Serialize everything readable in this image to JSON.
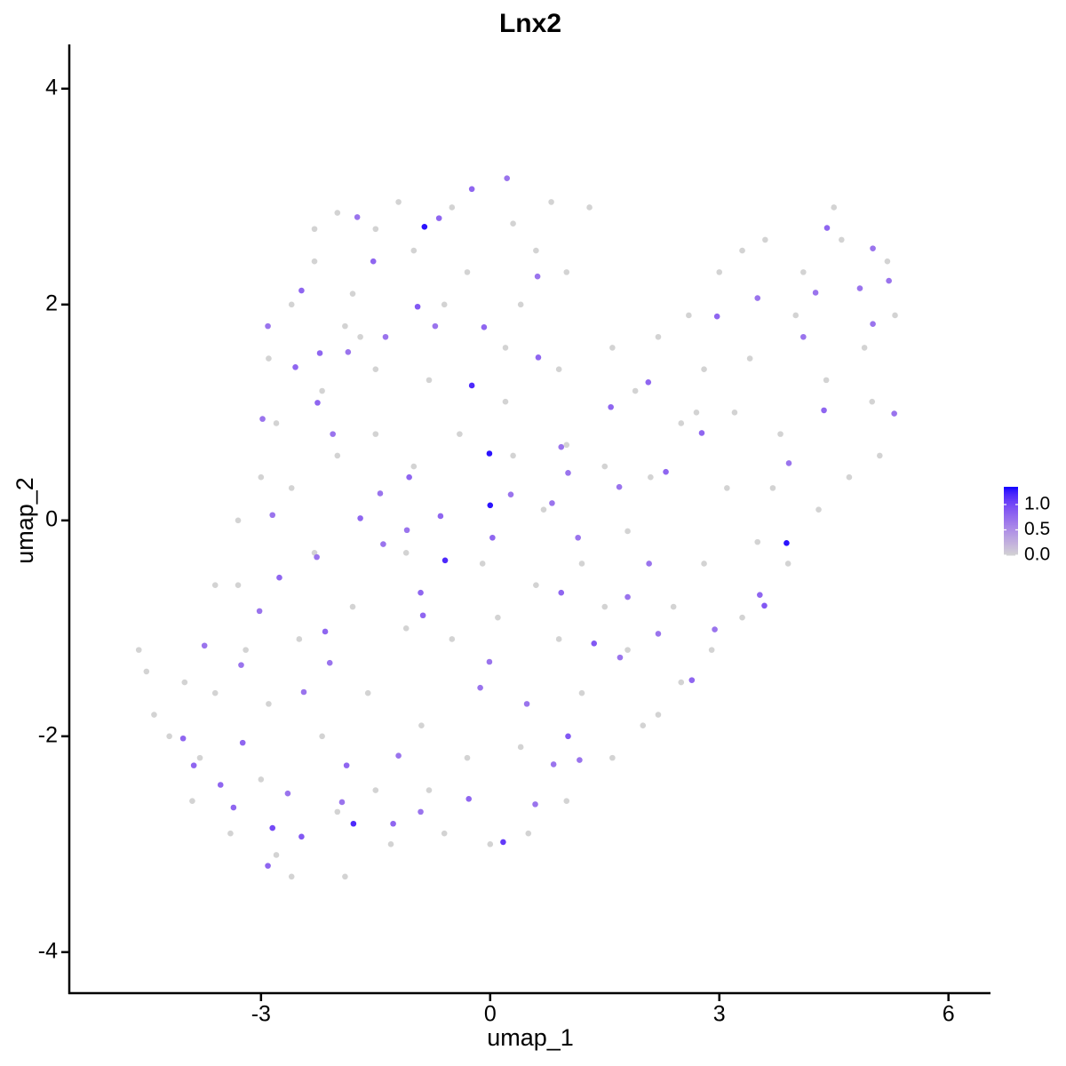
{
  "chart_data": {
    "type": "scatter",
    "title": "Lnx2",
    "x_label": "umap_1",
    "y_label": "umap_2",
    "xlim": [
      -5.51,
      6.55
    ],
    "ylim": [
      -4.38,
      4.41
    ],
    "xticks": [
      -3,
      0,
      3,
      6
    ],
    "yticks": [
      -4,
      -2,
      0,
      2,
      4
    ],
    "colors": [
      "#d3d3d3",
      "#0000ff"
    ],
    "clim": [
      0,
      1.35
    ],
    "cticks": [
      {
        "value": 0,
        "label": "0.0"
      },
      {
        "value": 0.5,
        "label": "0.5"
      },
      {
        "value": 1,
        "label": "1.0"
      }
    ],
    "points": [
      [
        -2.0,
        2.85,
        0
      ],
      [
        -1.5,
        2.7,
        0
      ],
      [
        -1.2,
        2.95,
        0
      ],
      [
        -0.5,
        2.9,
        0
      ],
      [
        0.3,
        2.75,
        0
      ],
      [
        0.8,
        2.95,
        0
      ],
      [
        1.3,
        2.9,
        0
      ],
      [
        -2.3,
        2.4,
        0
      ],
      [
        -1.0,
        2.5,
        0
      ],
      [
        0.6,
        2.5,
        0
      ],
      [
        1.0,
        2.3,
        0
      ],
      [
        -2.6,
        2.0,
        0
      ],
      [
        -1.8,
        2.1,
        0
      ],
      [
        -0.3,
        2.3,
        0
      ],
      [
        0.4,
        2.0,
        0
      ],
      [
        -2.9,
        1.5,
        0
      ],
      [
        -2.2,
        1.2,
        0
      ],
      [
        -1.5,
        1.4,
        0
      ],
      [
        -0.8,
        1.3,
        0
      ],
      [
        0.2,
        1.1,
        0
      ],
      [
        0.9,
        1.4,
        0
      ],
      [
        1.6,
        1.6,
        0
      ],
      [
        2.2,
        1.7,
        0
      ],
      [
        2.8,
        1.4,
        0
      ],
      [
        3.4,
        1.5,
        0
      ],
      [
        4.0,
        1.9,
        0
      ],
      [
        4.6,
        2.6,
        0
      ],
      [
        4.5,
        2.9,
        0
      ],
      [
        5.2,
        2.4,
        0
      ],
      [
        3.6,
        2.6,
        0
      ],
      [
        3.0,
        2.3,
        0
      ],
      [
        2.6,
        1.9,
        0
      ],
      [
        1.9,
        1.2,
        0
      ],
      [
        2.5,
        0.9,
        0
      ],
      [
        3.2,
        1.0,
        0
      ],
      [
        3.8,
        0.8,
        0
      ],
      [
        4.4,
        1.3,
        0
      ],
      [
        5.0,
        1.1,
        0
      ],
      [
        4.7,
        0.4,
        0
      ],
      [
        4.3,
        0.1,
        0
      ],
      [
        3.9,
        -0.4,
        0
      ],
      [
        3.5,
        -0.2,
        0
      ],
      [
        3.3,
        -0.9,
        0
      ],
      [
        2.9,
        -1.2,
        0
      ],
      [
        2.5,
        -1.5,
        0
      ],
      [
        2.2,
        -1.8,
        0
      ],
      [
        1.6,
        -2.2,
        0
      ],
      [
        1.0,
        -2.6,
        0
      ],
      [
        0.5,
        -2.9,
        0
      ],
      [
        0.0,
        -3.0,
        0
      ],
      [
        -0.6,
        -2.9,
        0
      ],
      [
        -1.3,
        -3.0,
        0
      ],
      [
        -1.9,
        -3.3,
        0
      ],
      [
        -2.6,
        -3.3,
        0
      ],
      [
        -2.8,
        -3.1,
        0
      ],
      [
        -3.4,
        -2.9,
        0
      ],
      [
        -3.9,
        -2.6,
        0
      ],
      [
        -4.2,
        -2.0,
        0
      ],
      [
        -4.5,
        -1.4,
        0
      ],
      [
        -4.6,
        -1.2,
        0
      ],
      [
        -4.4,
        -1.8,
        0
      ],
      [
        -3.6,
        -1.6,
        0
      ],
      [
        -3.2,
        -1.2,
        0
      ],
      [
        -3.6,
        -0.6,
        0
      ],
      [
        -3.3,
        0.0,
        0
      ],
      [
        -3.0,
        0.4,
        0
      ],
      [
        -2.8,
        0.9,
        0
      ],
      [
        -2.6,
        0.3,
        0
      ],
      [
        -2.0,
        0.6,
        0
      ],
      [
        -1.5,
        0.8,
        0
      ],
      [
        -1.0,
        0.5,
        0
      ],
      [
        -0.4,
        0.8,
        0
      ],
      [
        0.3,
        0.6,
        0
      ],
      [
        1.0,
        0.7,
        0
      ],
      [
        1.5,
        0.5,
        0
      ],
      [
        2.1,
        0.4,
        0
      ],
      [
        1.8,
        -0.1,
        0
      ],
      [
        1.2,
        -0.4,
        0
      ],
      [
        0.6,
        -0.6,
        0
      ],
      [
        0.1,
        -0.9,
        0
      ],
      [
        -0.5,
        -1.1,
        0
      ],
      [
        -1.1,
        -1.0,
        0
      ],
      [
        -1.8,
        -0.8,
        0
      ],
      [
        -2.5,
        -1.1,
        0
      ],
      [
        -2.9,
        -1.7,
        0
      ],
      [
        -2.2,
        -2.0,
        0
      ],
      [
        -1.6,
        -1.6,
        0
      ],
      [
        -0.9,
        -1.9,
        0
      ],
      [
        -0.3,
        -2.2,
        0
      ],
      [
        0.4,
        -2.1,
        0
      ],
      [
        1.2,
        -1.6,
        0
      ],
      [
        1.8,
        -1.2,
        0
      ],
      [
        2.4,
        -0.8,
        0
      ],
      [
        2.8,
        -0.4,
        0
      ],
      [
        3.1,
        0.3,
        0
      ],
      [
        -1.5,
        -2.5,
        0
      ],
      [
        -2.0,
        -2.7,
        0
      ],
      [
        -3.0,
        -2.4,
        0
      ],
      [
        -1.1,
        -0.3,
        0
      ],
      [
        -0.1,
        -0.4,
        0
      ],
      [
        0.7,
        0.1,
        0
      ],
      [
        -2.3,
        -0.3,
        0
      ],
      [
        -1.7,
        1.7,
        0
      ],
      [
        -0.6,
        2.0,
        0
      ],
      [
        0.2,
        1.6,
        0
      ],
      [
        -3.3,
        -0.6,
        0
      ],
      [
        -4.0,
        -1.5,
        0
      ],
      [
        -3.8,
        -2.2,
        0
      ],
      [
        -0.8,
        -2.5,
        0
      ],
      [
        0.9,
        -1.1,
        0
      ],
      [
        1.5,
        -0.8,
        0
      ],
      [
        2.0,
        -1.9,
        0
      ],
      [
        3.7,
        0.3,
        0
      ],
      [
        4.9,
        1.6,
        0
      ],
      [
        5.3,
        1.9,
        0
      ],
      [
        5.1,
        0.6,
        0
      ],
      [
        4.1,
        2.3,
        0
      ],
      [
        3.3,
        2.5,
        0
      ],
      [
        2.7,
        1.0,
        0
      ],
      [
        -2.3,
        2.7,
        0
      ],
      [
        -1.9,
        1.8,
        0
      ],
      [
        -0.24,
        3.07,
        0.8
      ],
      [
        0.22,
        3.17,
        0.7
      ],
      [
        -0.67,
        2.8,
        0.8
      ],
      [
        -1.53,
        2.4,
        0.8
      ],
      [
        -0.95,
        1.98,
        0.9
      ],
      [
        -0.08,
        1.79,
        0.8
      ],
      [
        0.62,
        2.26,
        0.7
      ],
      [
        -2.91,
        1.8,
        0.7
      ],
      [
        -2.55,
        1.42,
        0.8
      ],
      [
        -2.23,
        1.55,
        0.8
      ],
      [
        -1.86,
        1.56,
        0.7
      ],
      [
        -2.26,
        1.09,
        0.8
      ],
      [
        -2.98,
        0.94,
        0.7
      ],
      [
        -1.37,
        1.7,
        0.7
      ],
      [
        1.58,
        1.05,
        0.8
      ],
      [
        2.3,
        0.45,
        0.8
      ],
      [
        2.97,
        1.89,
        0.8
      ],
      [
        4.1,
        1.7,
        0.7
      ],
      [
        4.84,
        2.15,
        0.7
      ],
      [
        5.22,
        2.22,
        0.7
      ],
      [
        5.29,
        0.99,
        0.7
      ],
      [
        5.01,
        1.82,
        0.7
      ],
      [
        4.37,
        1.02,
        0.8
      ],
      [
        3.91,
        0.53,
        0.7
      ],
      [
        3.59,
        -0.79,
        0.9
      ],
      [
        3.53,
        -0.69,
        0.8
      ],
      [
        2.64,
        -1.48,
        0.8
      ],
      [
        2.94,
        -1.01,
        0.7
      ],
      [
        1.36,
        -1.14,
        0.9
      ],
      [
        1.02,
        -2.0,
        0.9
      ],
      [
        1.17,
        -2.22,
        0.7
      ],
      [
        0.48,
        -1.7,
        0.7
      ],
      [
        -0.13,
        -1.55,
        0.7
      ],
      [
        -0.91,
        -0.67,
        0.8
      ],
      [
        -1.4,
        -0.22,
        0.7
      ],
      [
        -1.7,
        0.02,
        0.8
      ],
      [
        -2.27,
        -0.34,
        0.7
      ],
      [
        -2.16,
        -1.03,
        0.8
      ],
      [
        -3.02,
        -0.84,
        0.7
      ],
      [
        -3.26,
        -1.34,
        0.7
      ],
      [
        -2.44,
        -1.59,
        0.7
      ],
      [
        -3.24,
        -2.06,
        0.8
      ],
      [
        -3.53,
        -2.45,
        0.8
      ],
      [
        -3.88,
        -2.27,
        0.8
      ],
      [
        -2.65,
        -2.53,
        0.7
      ],
      [
        -1.88,
        -2.27,
        0.8
      ],
      [
        -1.2,
        -2.18,
        0.7
      ],
      [
        -1.27,
        -2.81,
        0.8
      ],
      [
        -0.28,
        -2.58,
        0.8
      ],
      [
        -0.91,
        -2.7,
        0.7
      ],
      [
        0.83,
        -2.26,
        0.7
      ],
      [
        0.59,
        -2.63,
        0.7
      ],
      [
        2.2,
        -1.05,
        0.7
      ],
      [
        2.08,
        -0.4,
        0.7
      ],
      [
        0.93,
        -0.67,
        0.8
      ],
      [
        1.15,
        -0.16,
        0.7
      ],
      [
        0.03,
        -0.16,
        0.8
      ],
      [
        -0.65,
        0.04,
        0.8
      ],
      [
        -1.09,
        -0.09,
        0.7
      ],
      [
        -1.44,
        0.25,
        0.7
      ],
      [
        -2.06,
        0.8,
        0.7
      ],
      [
        -1.06,
        0.4,
        0.8
      ],
      [
        0.81,
        0.16,
        0.7
      ],
      [
        0.93,
        0.68,
        0.7
      ],
      [
        0.63,
        1.51,
        0.8
      ],
      [
        -0.72,
        1.8,
        0.7
      ],
      [
        -1.74,
        2.81,
        0.7
      ],
      [
        -2.47,
        2.13,
        0.8
      ],
      [
        4.26,
        2.11,
        0.7
      ],
      [
        4.41,
        2.71,
        0.8
      ],
      [
        5.01,
        2.52,
        0.7
      ],
      [
        3.5,
        2.06,
        0.7
      ],
      [
        2.77,
        0.81,
        0.8
      ],
      [
        2.07,
        1.28,
        0.8
      ],
      [
        1.69,
        0.31,
        0.7
      ],
      [
        1.02,
        0.44,
        0.7
      ],
      [
        -3.74,
        -1.16,
        0.7
      ],
      [
        -4.02,
        -2.02,
        0.8
      ],
      [
        -3.36,
        -2.66,
        0.8
      ],
      [
        -2.91,
        -3.2,
        0.8
      ],
      [
        -2.47,
        -2.93,
        0.9
      ],
      [
        -1.94,
        -2.61,
        0.7
      ],
      [
        -0.88,
        -0.88,
        0.8
      ],
      [
        -0.01,
        -1.31,
        0.7
      ],
      [
        1.7,
        -1.27,
        0.7
      ],
      [
        1.8,
        -0.71,
        0.7
      ],
      [
        0.27,
        0.24,
        0.7
      ],
      [
        -2.85,
        0.05,
        0.7
      ],
      [
        -2.76,
        -0.53,
        0.8
      ],
      [
        -2.1,
        -1.32,
        0.7
      ],
      [
        -2.85,
        -2.85,
        1.0
      ],
      [
        0.17,
        -2.98,
        1.1
      ],
      [
        -0.59,
        -0.37,
        1.2
      ],
      [
        -0.24,
        1.25,
        1.2
      ],
      [
        -1.79,
        -2.81,
        1.2
      ],
      [
        -0.86,
        2.72,
        1.3
      ],
      [
        -0.01,
        0.62,
        1.3
      ],
      [
        0,
        0.14,
        1.3
      ],
      [
        3.88,
        -0.21,
        1.3
      ]
    ]
  }
}
